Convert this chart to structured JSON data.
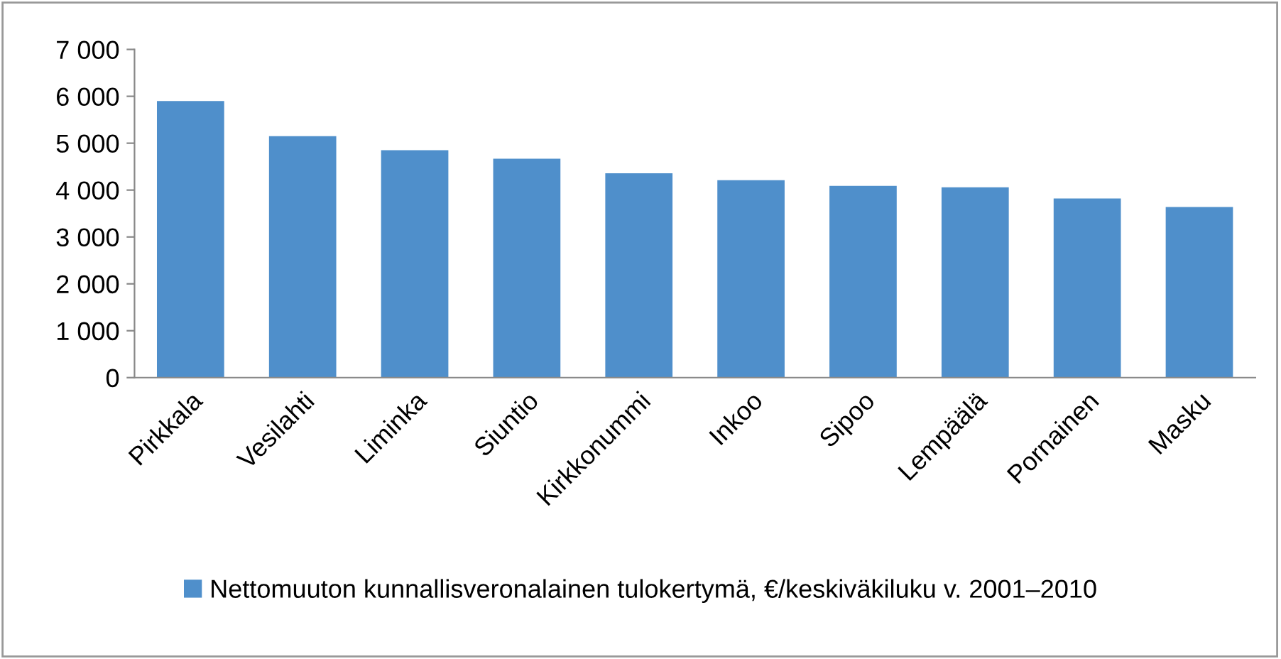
{
  "chart_data": {
    "type": "bar",
    "categories": [
      "Pirkkala",
      "Vesilahti",
      "Liminka",
      "Siuntio",
      "Kirkkonummi",
      "Inkoo",
      "Sipoo",
      "Lempäälä",
      "Pornainen",
      "Masku"
    ],
    "series": [
      {
        "name": "Nettomuuton kunnallisveronalainen tulokertymä, €/keskiväkiluku v. 2001–2010",
        "color": "#4f8fcb",
        "values": [
          5900,
          5150,
          4850,
          4670,
          4360,
          4210,
          4090,
          4060,
          3820,
          3640
        ]
      }
    ],
    "ylim": [
      0,
      7000
    ],
    "yticks": [
      0,
      {
        "value": 1000,
        "label": "1 000"
      },
      {
        "value": 2000,
        "label": "2 000"
      },
      {
        "value": 3000,
        "label": "3 000"
      },
      {
        "value": 4000,
        "label": "4 000"
      },
      {
        "value": 5000,
        "label": "5 000"
      },
      {
        "value": 6000,
        "label": "6 000"
      },
      {
        "value": 7000,
        "label": "7 000"
      }
    ],
    "grid": false,
    "legend": "bottom"
  }
}
